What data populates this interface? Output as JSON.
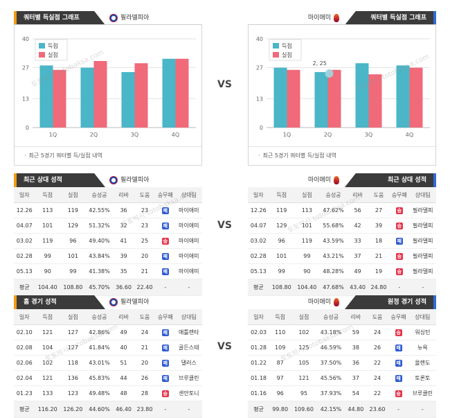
{
  "vs_label": "VS",
  "watermark": "토토박사 totobaksa.com",
  "panels": {
    "quarter_home": {
      "tab": "쿼터별 득실점 그래프",
      "team": "필라델피아",
      "note": "최근 5경기 쿼터별 득/실점 내역"
    },
    "quarter_away": {
      "tab": "쿼터별 득실점 그래프",
      "team": "마이애미",
      "note": "최근 5경기 쿼터별 득/실점 내역",
      "tooltip": "2, 25"
    },
    "recent_home": {
      "tab": "최근 상대 성적",
      "team": "필라델피아"
    },
    "recent_away": {
      "tab": "최근 상대 성적",
      "team": "마이애미"
    },
    "venue_home": {
      "tab": "홈 경기 성적",
      "team": "필라델피아"
    },
    "venue_away": {
      "tab": "원정 경기 성적",
      "team": "마이애미"
    }
  },
  "headers": [
    "일자",
    "득점",
    "실점",
    "승성공",
    "리바",
    "도움",
    "승무패",
    "상대팀"
  ],
  "result_labels": {
    "loss": "패",
    "win": "승"
  },
  "colors": {
    "scored": "#4ab6c7",
    "conceded": "#f06a7a",
    "home_accent": "#f39c12",
    "away_accent": "#2f6cd6"
  },
  "chart_data": [
    {
      "type": "bar",
      "categories": [
        "1Q",
        "2Q",
        "3Q",
        "4Q"
      ],
      "series": [
        {
          "name": "득점",
          "values": [
            28,
            27,
            25,
            31
          ]
        },
        {
          "name": "실점",
          "values": [
            26,
            30,
            29,
            31
          ]
        }
      ],
      "ylim": [
        0,
        40
      ],
      "yticks": [
        0,
        13,
        27,
        40
      ],
      "grid": true,
      "legend": "top-left"
    },
    {
      "type": "bar",
      "categories": [
        "1Q",
        "2Q",
        "3Q",
        "4Q"
      ],
      "series": [
        {
          "name": "득점",
          "values": [
            27,
            25,
            29,
            28
          ]
        },
        {
          "name": "실점",
          "values": [
            26,
            26,
            24,
            27
          ]
        }
      ],
      "ylim": [
        0,
        40
      ],
      "yticks": [
        0,
        13,
        27,
        40
      ],
      "grid": true,
      "legend": "top-left"
    }
  ],
  "tables": {
    "recent_home": {
      "rows": [
        [
          "12.26",
          "113",
          "119",
          "42.55%",
          "36",
          "23",
          "loss",
          "마이애미"
        ],
        [
          "04.07",
          "101",
          "129",
          "51.32%",
          "32",
          "23",
          "loss",
          "마이애미"
        ],
        [
          "03.02",
          "119",
          "96",
          "49.40%",
          "41",
          "25",
          "win",
          "마이애미"
        ],
        [
          "02.28",
          "99",
          "101",
          "43.84%",
          "39",
          "20",
          "loss",
          "마이애미"
        ],
        [
          "05.13",
          "90",
          "99",
          "41.38%",
          "35",
          "21",
          "loss",
          "마이애미"
        ]
      ],
      "avg": [
        "평균",
        "104.40",
        "108.80",
        "45.70%",
        "36.60",
        "22.40",
        "-",
        "-"
      ]
    },
    "recent_away": {
      "rows": [
        [
          "12.26",
          "119",
          "113",
          "47.62%",
          "56",
          "27",
          "win",
          "필라델피"
        ],
        [
          "04.07",
          "129",
          "101",
          "55.68%",
          "42",
          "39",
          "win",
          "필라델피"
        ],
        [
          "03.02",
          "96",
          "119",
          "43.59%",
          "33",
          "18",
          "loss",
          "필라델피"
        ],
        [
          "02.28",
          "101",
          "99",
          "43.21%",
          "37",
          "21",
          "win",
          "필라델피"
        ],
        [
          "05.13",
          "99",
          "90",
          "48.28%",
          "49",
          "19",
          "win",
          "필라델피"
        ]
      ],
      "avg": [
        "평균",
        "108.80",
        "104.40",
        "47.68%",
        "43.40",
        "24.80",
        "-",
        "-"
      ]
    },
    "venue_home": {
      "rows": [
        [
          "02.10",
          "121",
          "127",
          "42.86%",
          "49",
          "24",
          "loss",
          "애틀랜타"
        ],
        [
          "02.08",
          "104",
          "127",
          "41.84%",
          "40",
          "21",
          "loss",
          "골든스테"
        ],
        [
          "02.06",
          "102",
          "118",
          "43.01%",
          "51",
          "20",
          "loss",
          "댈러스"
        ],
        [
          "02.04",
          "121",
          "136",
          "45.83%",
          "44",
          "26",
          "loss",
          "브루클린"
        ],
        [
          "01.23",
          "133",
          "123",
          "49.48%",
          "48",
          "28",
          "win",
          "샌안토니"
        ]
      ],
      "avg": [
        "평균",
        "116.20",
        "126.20",
        "44.60%",
        "46.40",
        "23.80",
        "-",
        "-"
      ]
    },
    "venue_away": {
      "rows": [
        [
          "02.03",
          "110",
          "102",
          "43.18%",
          "59",
          "24",
          "win",
          "워싱턴"
        ],
        [
          "01.28",
          "109",
          "125",
          "46.59%",
          "38",
          "26",
          "loss",
          "뉴욕"
        ],
        [
          "01.22",
          "87",
          "105",
          "37.50%",
          "36",
          "22",
          "loss",
          "올랜도"
        ],
        [
          "01.18",
          "97",
          "121",
          "45.56%",
          "37",
          "24",
          "loss",
          "토론토"
        ],
        [
          "01.16",
          "96",
          "95",
          "37.93%",
          "54",
          "22",
          "win",
          "브루클린"
        ]
      ],
      "avg": [
        "평균",
        "99.80",
        "109.60",
        "42.15%",
        "44.80",
        "23.60",
        "-",
        "-"
      ]
    }
  }
}
